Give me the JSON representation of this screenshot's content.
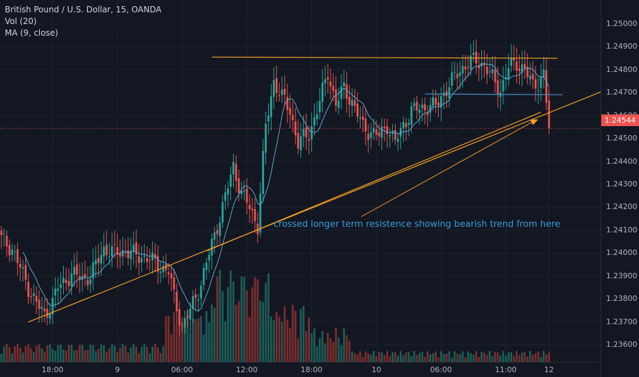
{
  "legend": {
    "symbol": "British Pound / U.S. Dollar, 15, OANDA",
    "volume": "Vol (20)",
    "ma": "MA (9, close)"
  },
  "annotation": "crossed longer term resistence showing bearish trend from here",
  "last_price": "1.24544",
  "price_ticks": [
    "1.25000",
    "1.24900",
    "1.24800",
    "1.24700",
    "1.24600",
    "1.24500",
    "1.24400",
    "1.24300",
    "1.24200",
    "1.24100",
    "1.24000",
    "1.23900",
    "1.23800",
    "1.23700",
    "1.23600"
  ],
  "time_ticks": [
    "18:00",
    "9",
    "06:00",
    "12:00",
    "18:00",
    "10",
    "06:00",
    "11:00",
    "12"
  ],
  "colors": {
    "background": "#131722",
    "up": "#26a69a",
    "down": "#ef5350",
    "volume_up": "#1b5e57",
    "volume_down": "#7a2e2e",
    "ma": "#5fa8d3",
    "trendline": "#f7a026",
    "support": "#4a90c8",
    "grid": "#1e222d",
    "last_price_line": "#ef5350"
  },
  "chart_data": {
    "type": "candlestick",
    "title": "British Pound / U.S. Dollar, 15, OANDA",
    "ylim": [
      1.2355,
      1.2508
    ],
    "x_ticks": [
      "18:00",
      "9",
      "06:00",
      "12:00",
      "18:00",
      "10",
      "06:00",
      "11:00",
      "12"
    ],
    "y_ticks": [
      1.25,
      1.249,
      1.248,
      1.247,
      1.246,
      1.245,
      1.244,
      1.243,
      1.242,
      1.241,
      1.24,
      1.239,
      1.238,
      1.237,
      1.236
    ],
    "close_anchors": [
      [
        0,
        1.2406
      ],
      [
        4,
        1.2402
      ],
      [
        10,
        1.2385
      ],
      [
        13,
        1.2378
      ],
      [
        16,
        1.2373
      ],
      [
        19,
        1.2379
      ],
      [
        21,
        1.2385
      ],
      [
        26,
        1.2391
      ],
      [
        30,
        1.2389
      ],
      [
        33,
        1.239
      ],
      [
        38,
        1.2402
      ],
      [
        42,
        1.24
      ],
      [
        46,
        1.2401
      ],
      [
        50,
        1.2399
      ],
      [
        54,
        1.2398
      ],
      [
        58,
        1.2395
      ],
      [
        62,
        1.2392
      ],
      [
        64,
        1.2381
      ],
      [
        67,
        1.2368
      ],
      [
        70,
        1.2375
      ],
      [
        74,
        1.2387
      ],
      [
        78,
        1.2404
      ],
      [
        82,
        1.242
      ],
      [
        86,
        1.2438
      ],
      [
        89,
        1.2426
      ],
      [
        92,
        1.242
      ],
      [
        95,
        1.2412
      ],
      [
        98,
        1.2455
      ],
      [
        101,
        1.2475
      ],
      [
        104,
        1.2468
      ],
      [
        107,
        1.2462
      ],
      [
        110,
        1.2448
      ],
      [
        114,
        1.2452
      ],
      [
        118,
        1.2466
      ],
      [
        121,
        1.2479
      ],
      [
        124,
        1.2465
      ],
      [
        127,
        1.2472
      ],
      [
        130,
        1.2466
      ],
      [
        134,
        1.2455
      ],
      [
        137,
        1.2453
      ],
      [
        140,
        1.2451
      ],
      [
        143,
        1.2456
      ],
      [
        146,
        1.2448
      ],
      [
        149,
        1.2456
      ],
      [
        152,
        1.2462
      ],
      [
        155,
        1.2463
      ],
      [
        158,
        1.2464
      ],
      [
        161,
        1.2464
      ],
      [
        164,
        1.247
      ],
      [
        167,
        1.2475
      ],
      [
        170,
        1.248
      ],
      [
        173,
        1.2483
      ],
      [
        176,
        1.2484
      ],
      [
        179,
        1.2482
      ],
      [
        182,
        1.2476
      ],
      [
        185,
        1.2471
      ],
      [
        188,
        1.2481
      ],
      [
        191,
        1.2483
      ],
      [
        194,
        1.248
      ],
      [
        197,
        1.2473
      ],
      [
        199,
        1.2475
      ],
      [
        201,
        1.2478
      ],
      [
        203,
        1.2454
      ]
    ],
    "volume_peak_note": "volume histogram, highest bars around 12:00 on the 9th",
    "moving_average": {
      "name": "MA (9, close)",
      "period": 9
    },
    "last_close": 1.24544,
    "lines": [
      {
        "type": "ascending trendline",
        "from": [
          1.237
        ],
        "to": [
          1.247
        ]
      },
      {
        "type": "ascending trendline",
        "from": [
          1.2401
        ],
        "to": [
          1.247
        ]
      },
      {
        "type": "horizontal resistance",
        "price": 1.2485
      },
      {
        "type": "horizontal support",
        "price": 1.2469
      }
    ]
  }
}
